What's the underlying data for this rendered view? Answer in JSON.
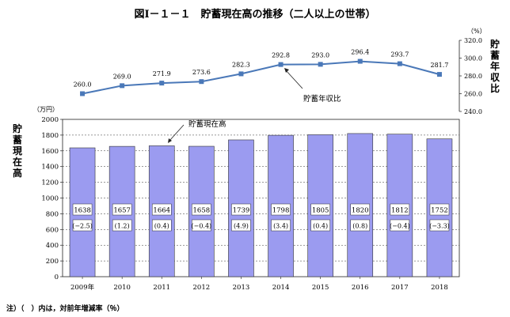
{
  "chart_data": {
    "title": "図Ⅰ－１－１　貯蓄現在高の推移（二人以上の世帯）",
    "x": [
      "2009年",
      "2010",
      "2011",
      "2012",
      "2013",
      "2014",
      "2015",
      "2016",
      "2017",
      "2018"
    ],
    "bar": {
      "type": "bar",
      "ylabel": "貯蓄現在高",
      "unit": "（万円）",
      "ylim": [
        0,
        2000
      ],
      "yticks": [
        "0",
        "200",
        "400",
        "600",
        "800",
        "1000",
        "1200",
        "1400",
        "1600",
        "1800",
        "2000"
      ],
      "values": [
        1638,
        1657,
        1664,
        1658,
        1739,
        1798,
        1805,
        1820,
        1812,
        1752
      ],
      "value_labels": [
        "1638",
        "1657",
        "1664",
        "1658",
        "1739",
        "1798",
        "1805",
        "1820",
        "1812",
        "1752"
      ],
      "change_labels": [
        "(−2.5)",
        "(1.2)",
        "(0.4)",
        "(−0.4)",
        "(4.9)",
        "(3.4)",
        "(0.4)",
        "(0.8)",
        "(−0.4)",
        "(−3.3)"
      ],
      "annotation": "貯蓄現在高",
      "color": "#9b9bf0"
    },
    "line": {
      "type": "line",
      "ylabel": "貯蓄年収比",
      "unit": "（%）",
      "ylim": [
        240,
        320
      ],
      "yticks": [
        "240.0",
        "260.0",
        "280.0",
        "300.0",
        "320.0"
      ],
      "values": [
        260.0,
        269.0,
        271.9,
        273.6,
        282.3,
        292.8,
        293.0,
        296.4,
        293.7,
        281.7
      ],
      "value_labels": [
        "260.0",
        "269.0",
        "271.9",
        "273.6",
        "282.3",
        "292.8",
        "293.0",
        "296.4",
        "293.7",
        "281.7"
      ],
      "annotation": "貯蓄年収比",
      "color": "#4a78b8"
    },
    "note": "注）（　）内は，対前年増減率（％）"
  }
}
